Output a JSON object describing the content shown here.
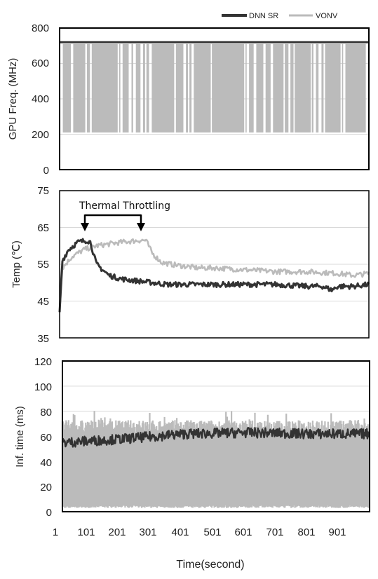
{
  "legend": {
    "items": [
      {
        "name": "DNN SR",
        "color": "#333333"
      },
      {
        "name": "VONV",
        "color": "#bbbbbb"
      }
    ]
  },
  "chart_data": [
    {
      "type": "line",
      "ylabel": "GPU Freq. (MHz)",
      "ylim": [
        0,
        800
      ],
      "yticks": [
        "0",
        "200",
        "400",
        "600",
        "800"
      ],
      "grid": true,
      "xlim": [
        1,
        1000
      ],
      "series": [
        {
          "name": "DNN SR",
          "color": "#333333",
          "description": "constant",
          "x": [
            1,
            1000
          ],
          "y": [
            720,
            720
          ]
        },
        {
          "name": "VONV",
          "color": "#bbbbbb",
          "description": "oscillating between 210 and 710 MHz",
          "low": 210,
          "high": 710
        }
      ]
    },
    {
      "type": "line",
      "ylabel": "Temp (℃)",
      "ylim": [
        35,
        75
      ],
      "yticks": [
        "35",
        "45",
        "55",
        "65",
        "75"
      ],
      "grid": true,
      "xlim": [
        1,
        1000
      ],
      "annotation": {
        "text": "Thermal Throttling",
        "x_from": 101,
        "x_to": 281,
        "y": 68
      },
      "series": [
        {
          "name": "DNN SR",
          "color": "#333333",
          "x": [
            1,
            10,
            30,
            60,
            90,
            101,
            110,
            120,
            140,
            160,
            200,
            250,
            300,
            350,
            400,
            500,
            600,
            700,
            800,
            850,
            880,
            900,
            950,
            1000
          ],
          "y": [
            42,
            56,
            59,
            61,
            61.5,
            61,
            58,
            55,
            53.5,
            52,
            51,
            50.5,
            50,
            49.5,
            49.5,
            49.5,
            49.5,
            49.5,
            49,
            49,
            48,
            49,
            49,
            49.5
          ]
        },
        {
          "name": "VONV",
          "color": "#bbbbbb",
          "x": [
            1,
            10,
            40,
            80,
            120,
            200,
            260,
            280,
            300,
            330,
            360,
            400,
            450,
            500,
            600,
            700,
            800,
            900,
            950,
            1000
          ],
          "y": [
            42,
            54,
            57,
            59,
            60,
            61,
            61.5,
            61.5,
            58,
            55.5,
            55,
            54.5,
            54,
            54,
            53.5,
            53,
            53,
            52.5,
            52,
            52.5
          ]
        }
      ]
    },
    {
      "type": "line",
      "ylabel": "Inf. time (ms)",
      "ylim": [
        0,
        120
      ],
      "yticks": [
        "0",
        "20",
        "40",
        "60",
        "80",
        "100",
        "120"
      ],
      "grid": true,
      "xlim": [
        1,
        1000
      ],
      "xlabel": "Time(second)",
      "xticks": [
        "1",
        "101",
        "201",
        "301",
        "401",
        "501",
        "601",
        "701",
        "801",
        "901"
      ],
      "series": [
        {
          "name": "DNN SR",
          "color": "#333333",
          "description": "noisy around 55-65 ms",
          "x": [
            1,
            200,
            400,
            600,
            800,
            1000
          ],
          "y": [
            55,
            58,
            62,
            63,
            62,
            62
          ]
        },
        {
          "name": "VONV",
          "color": "#bbbbbb",
          "description": "mostly 60-75 ms with frequent drops to near 0 ms",
          "high": 68,
          "low": 3
        }
      ]
    }
  ]
}
